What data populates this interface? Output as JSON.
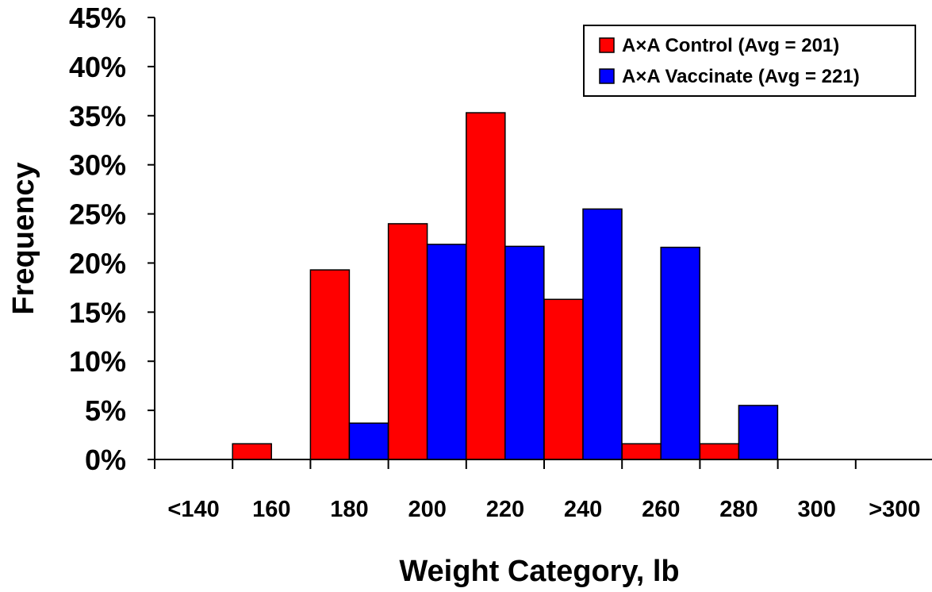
{
  "chart_data": {
    "type": "bar",
    "title": "",
    "xlabel": "Weight Category, lb",
    "ylabel": "Frequency",
    "categories": [
      "<140",
      "160",
      "180",
      "200",
      "220",
      "240",
      "260",
      "280",
      "300",
      ">300"
    ],
    "ylim": [
      0,
      45
    ],
    "yticks": [
      "0%",
      "5%",
      "10%",
      "15%",
      "20%",
      "25%",
      "30%",
      "35%",
      "40%",
      "45%"
    ],
    "grid": false,
    "legend_position": "top-right",
    "series": [
      {
        "name": "A×A Control (Avg = 201)",
        "color": "#ff0000",
        "values": [
          0,
          1.6,
          19.3,
          24.0,
          35.3,
          16.3,
          1.6,
          1.6,
          0,
          0
        ]
      },
      {
        "name": "A×A Vaccinate (Avg = 221)",
        "color": "#0000ff",
        "values": [
          0,
          0,
          3.7,
          21.9,
          21.7,
          25.5,
          21.6,
          5.5,
          0,
          0
        ]
      }
    ]
  }
}
